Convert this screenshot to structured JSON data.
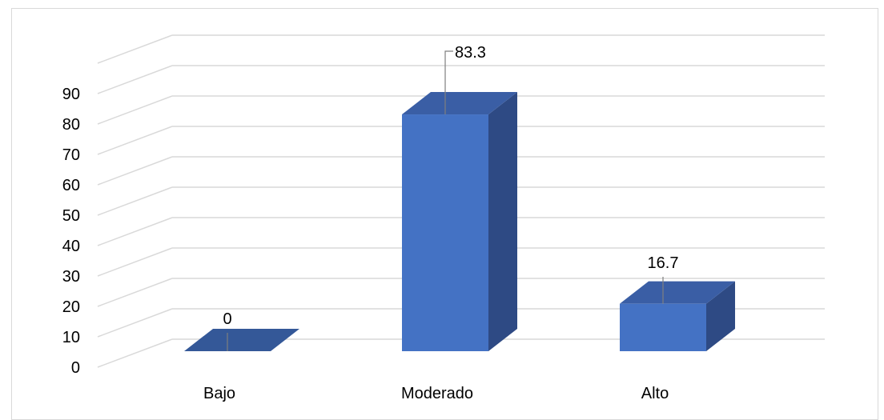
{
  "chart_data": {
    "type": "bar",
    "style": "3d-clustered-column",
    "categories": [
      "Bajo",
      "Moderado",
      "Alto"
    ],
    "values": [
      0,
      83.3,
      16.7
    ],
    "data_labels": [
      "0",
      "83.3",
      "16.7"
    ],
    "title": "",
    "xlabel": "",
    "ylabel": "",
    "ylim": [
      0,
      100
    ],
    "yticks": [
      0,
      10,
      20,
      30,
      40,
      50,
      60,
      70,
      80,
      90
    ],
    "grid": true,
    "legend": "none",
    "colors": {
      "front": "#4472c4",
      "top": "#3a5ea5",
      "side": "#2e4a84",
      "zero_bar": "#345898",
      "gridline": "#d9d9d9",
      "leader": "#7f7f7f"
    }
  }
}
